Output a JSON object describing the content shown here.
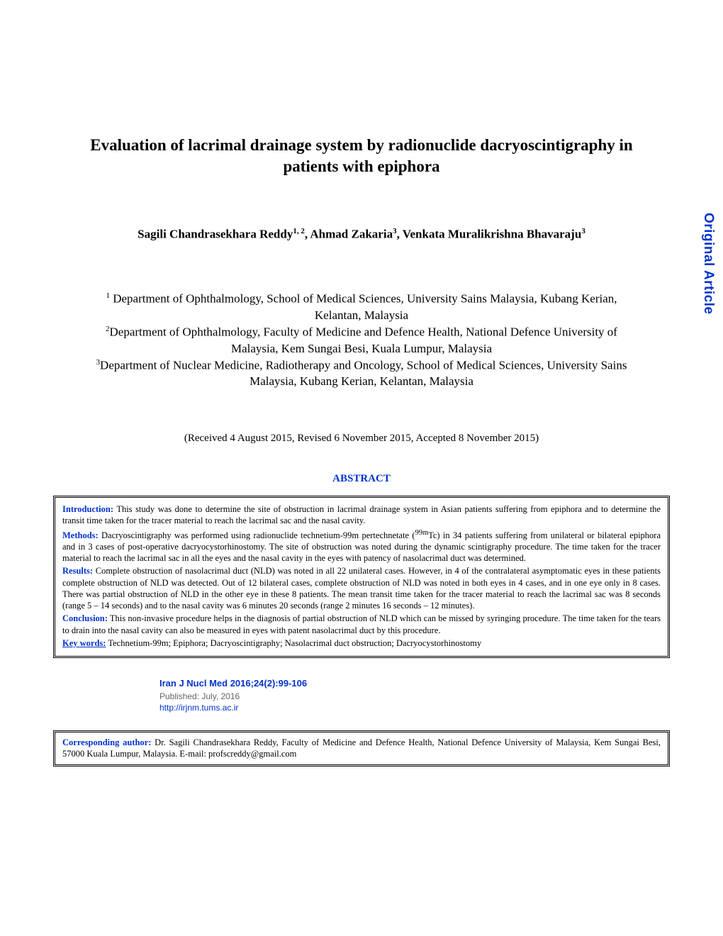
{
  "sideLabel": "Original Article",
  "title": "Evaluation of lacrimal drainage system by radionuclide dacryoscintigraphy in patients with epiphora",
  "authorsHtml": "Sagili Chandrasekhara Reddy<sup>1, 2</sup>, Ahmad Zakaria<sup>3</sup>, Venkata Muralikrishna Bhavaraju<sup>3</sup>",
  "affiliationsHtml": "<sup>1</sup> Department of Ophthalmology, School of Medical Sciences, University Sains Malaysia, Kubang Kerian, Kelantan, Malaysia<br><sup>2</sup>Department of Ophthalmology, Faculty of Medicine and Defence Health, National Defence University of Malaysia, Kem Sungai Besi, Kuala Lumpur, Malaysia<br><sup>3</sup>Department of Nuclear Medicine, Radiotherapy and Oncology, School of Medical Sciences, University Sains Malaysia, Kubang Kerian, Kelantan, Malaysia",
  "dates": "(Received 4 August 2015, Revised 6 November 2015, Accepted 8 November 2015)",
  "abstractHeading": "ABSTRACT",
  "abstract": {
    "introLabel": "Introduction:",
    "introText": " This study was done to determine the site of obstruction in lacrimal drainage system in Asian patients suffering from epiphora and to determine the transit time taken for the tracer material to reach the lacrimal sac and the nasal cavity.",
    "methodsLabel": "Methods:",
    "methodsHtml": " Dacryoscintigraphy was performed using radionuclide technetium-99m pertechnetate (<sup>99m</sup>Tc) in 34 patients suffering from unilateral or bilateral epiphora and in 3 cases of post-operative dacryocystorhinostomy. The site of obstruction was noted during the dynamic scintigraphy procedure. The time taken for the tracer material to reach the lacrimal sac in all the eyes and the nasal cavity in the eyes with patency of nasolacrimal duct was determined.",
    "resultsLabel": "Results:",
    "resultsText": " Complete obstruction of nasolacrimal duct (NLD) was noted in all 22 unilateral cases. However, in 4 of the contralateral asymptomatic eyes in these patients complete obstruction of NLD was detected. Out of 12 bilateral cases, complete obstruction of NLD was noted in both eyes in 4 cases, and in one eye only in 8 cases. There was partial obstruction of NLD in the other eye in these 8 patients. The mean transit time taken for the tracer material to reach the lacrimal sac was 8 seconds (range 5 – 14 seconds) and to the nasal cavity was 6 minutes 20 seconds (range 2 minutes 16 seconds – 12 minutes).",
    "conclusionLabel": "Conclusion:",
    "conclusionText": " This non-invasive procedure helps in the diagnosis of partial obstruction of NLD which can be missed by syringing procedure. The time taken for the tears to drain into the nasal cavity can also be measured in eyes with patent nasolacrimal duct by this procedure.",
    "keywordsLabel": "Key words:",
    "keywordsText": " Technetium-99m; Epiphora; Dacryoscintigraphy; Nasolacrimal duct obstruction; Dacryocystorhinostomy"
  },
  "pubInfo": {
    "citation": "Iran J Nucl Med 2016;24(2):99-106",
    "published": "Published: July, 2016",
    "url": "http://irjnm.tums.ac.ir"
  },
  "corresponding": {
    "label": "Corresponding author:",
    "text": " Dr. Sagili Chandrasekhara Reddy, Faculty of Medicine and Defence Health, National Defence University of Malaysia, Kem Sungai Besi, 57000 Kuala Lumpur, Malaysia. E-mail: profscreddy@gmail.com"
  },
  "colors": {
    "accent": "#0033cc",
    "text": "#000000",
    "muted": "#666666",
    "background": "#ffffff"
  },
  "layout": {
    "pageWidth": 1020,
    "pageHeight": 1320
  }
}
